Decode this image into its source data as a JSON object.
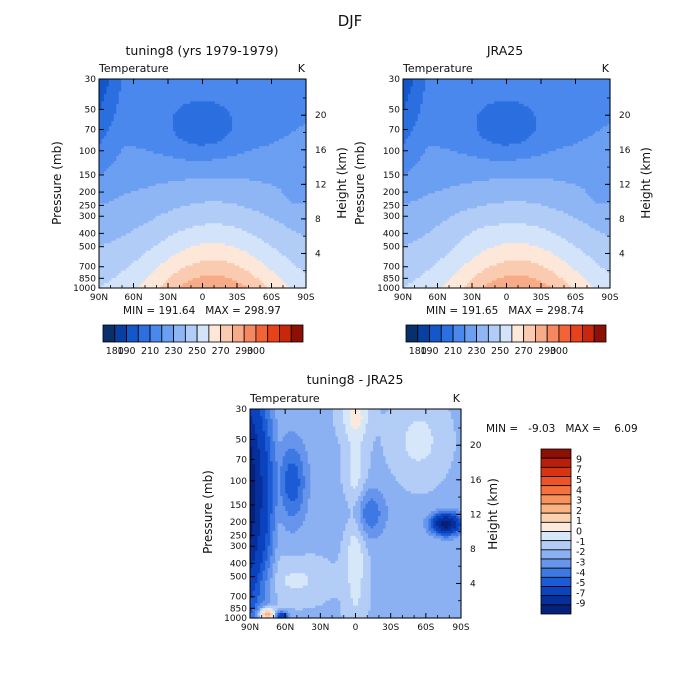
{
  "figure": {
    "title": "DJF"
  },
  "chart_data": [
    {
      "type": "heatmap",
      "title": "tuning8 (yrs 1979-1979)",
      "variable": "Temperature",
      "units": "K",
      "ylabel": "Pressure (mb)",
      "ylabel_right": "Height (km)",
      "x_ticks": [
        "90N",
        "60N",
        "30N",
        "0",
        "30S",
        "60S",
        "90S"
      ],
      "y_ticks": [
        "30",
        "50",
        "70",
        "100",
        "150",
        "200",
        "250",
        "300",
        "400",
        "500",
        "700",
        "850",
        "1000"
      ],
      "y_ticks_right": [
        "20",
        "16",
        "12",
        "8",
        "4"
      ],
      "ylim": [
        1000,
        30
      ],
      "xlim": [
        "90N",
        "90S"
      ],
      "stats": "MIN = 191.64   MAX = 298.97",
      "colorbar_ticks": [
        "180",
        "190",
        "200",
        "210",
        "220",
        "230",
        "240",
        "250",
        "260",
        "270",
        "280",
        "290",
        "300"
      ],
      "colorbar_labels": [
        "180",
        "190",
        "210",
        "230",
        "250",
        "270",
        "290",
        "300"
      ],
      "legend": "bottom",
      "colors": [
        "#08306b",
        "#083fa0",
        "#1357c9",
        "#2b6fe0",
        "#4a88ee",
        "#6b9ff2",
        "#8fb6f4",
        "#b1cdf7",
        "#d3e4fa",
        "#fde7d9",
        "#fbcbb1",
        "#f8ab88",
        "#f58860",
        "#f26436",
        "#e8421a",
        "#c9260c",
        "#8c1004"
      ]
    },
    {
      "type": "heatmap",
      "title": "JRA25",
      "variable": "Temperature",
      "units": "K",
      "ylabel": "Pressure (mb)",
      "ylabel_right": "Height (km)",
      "x_ticks": [
        "90N",
        "60N",
        "30N",
        "0",
        "30S",
        "60S",
        "90S"
      ],
      "y_ticks": [
        "30",
        "50",
        "70",
        "100",
        "150",
        "200",
        "250",
        "300",
        "400",
        "500",
        "700",
        "850",
        "1000"
      ],
      "y_ticks_right": [
        "20",
        "16",
        "12",
        "8",
        "4"
      ],
      "ylim": [
        1000,
        30
      ],
      "xlim": [
        "90N",
        "90S"
      ],
      "stats": "MIN = 191.65   MAX = 298.74",
      "colorbar_ticks": [
        "180",
        "190",
        "200",
        "210",
        "220",
        "230",
        "240",
        "250",
        "260",
        "270",
        "280",
        "290",
        "300"
      ],
      "colorbar_labels": [
        "180",
        "190",
        "210",
        "230",
        "250",
        "270",
        "290",
        "300"
      ],
      "legend": "bottom",
      "colors": [
        "#08306b",
        "#083fa0",
        "#1357c9",
        "#2b6fe0",
        "#4a88ee",
        "#6b9ff2",
        "#8fb6f4",
        "#b1cdf7",
        "#d3e4fa",
        "#fde7d9",
        "#fbcbb1",
        "#f8ab88",
        "#f58860",
        "#f26436",
        "#e8421a",
        "#c9260c",
        "#8c1004"
      ]
    },
    {
      "type": "heatmap",
      "title": "tuning8 - JRA25",
      "variable": "Temperature",
      "units": "K",
      "ylabel": "Pressure (mb)",
      "ylabel_right": "Height (km)",
      "x_ticks": [
        "90N",
        "60N",
        "30N",
        "0",
        "30S",
        "60S",
        "90S"
      ],
      "y_ticks": [
        "30",
        "50",
        "70",
        "100",
        "150",
        "200",
        "250",
        "300",
        "400",
        "500",
        "700",
        "850",
        "1000"
      ],
      "y_ticks_right": [
        "20",
        "16",
        "12",
        "8",
        "4"
      ],
      "ylim": [
        1000,
        30
      ],
      "xlim": [
        "90N",
        "90S"
      ],
      "stats": "MIN =   -9.03   MAX =    6.09",
      "colorbar_labels": [
        "9",
        "7",
        "5",
        "4",
        "3",
        "2",
        "1",
        "0",
        "-1",
        "-2",
        "-3",
        "-4",
        "-5",
        "-7",
        "-9"
      ],
      "legend": "right",
      "colors": [
        "#8c1004",
        "#b8200a",
        "#d83414",
        "#ee5228",
        "#f5723f",
        "#f8935e",
        "#fab383",
        "#fcd1b0",
        "#fde9db",
        "#d7e7fa",
        "#b3cdf6",
        "#8cb1f2",
        "#6795ec",
        "#3e79e3",
        "#1c5bd6",
        "#0a43bd",
        "#072f9c",
        "#06217a"
      ]
    }
  ]
}
